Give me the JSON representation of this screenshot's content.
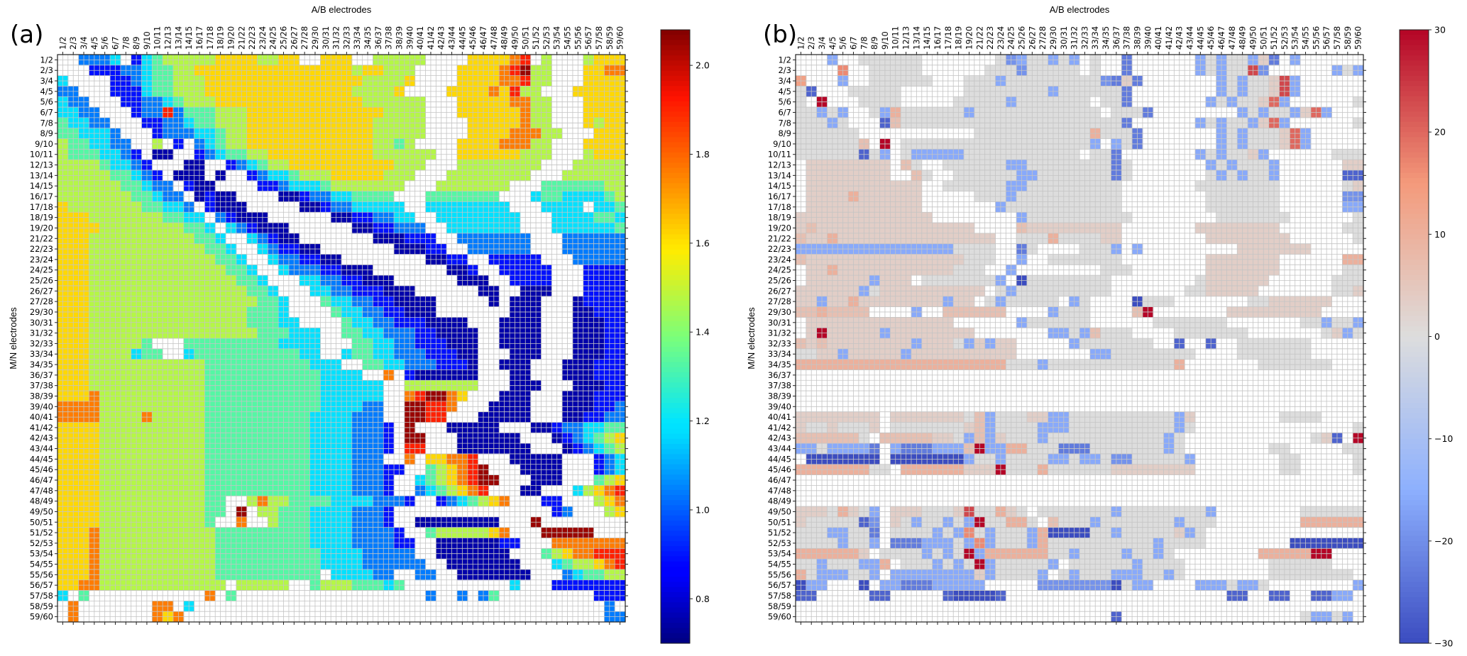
{
  "chart_data": [
    {
      "type": "heatmap",
      "panel_label": "(a)",
      "title": "",
      "xlabel": "A/B electrodes",
      "ylabel": "M/N electrodes",
      "x_tick_labels": [
        "1/2",
        "2/3",
        "3/4",
        "4/5",
        "5/6",
        "6/7",
        "7/8",
        "8/9",
        "9/10",
        "10/11",
        "12/13",
        "13/14",
        "14/15",
        "16/17",
        "17/18",
        "18/19",
        "19/20",
        "21/22",
        "22/23",
        "23/24",
        "24/25",
        "25/26",
        "26/27",
        "27/28",
        "29/30",
        "30/31",
        "31/32",
        "32/33",
        "33/34",
        "34/35",
        "36/37",
        "37/38",
        "38/39",
        "39/40",
        "40/41",
        "41/42",
        "42/43",
        "43/44",
        "44/45",
        "45/46",
        "46/47",
        "47/48",
        "48/49",
        "49/50",
        "50/51",
        "51/52",
        "52/53",
        "53/54",
        "54/55",
        "55/56",
        "56/57",
        "57/58",
        "58/59",
        "59/60"
      ],
      "y_tick_labels": [
        "1/2",
        "2/3",
        "3/4",
        "4/5",
        "5/6",
        "6/7",
        "7/8",
        "8/9",
        "9/10",
        "10/11",
        "12/13",
        "13/14",
        "14/15",
        "16/17",
        "17/18",
        "18/19",
        "19/20",
        "21/22",
        "22/23",
        "23/24",
        "24/25",
        "25/26",
        "26/27",
        "27/28",
        "29/30",
        "30/31",
        "31/32",
        "32/33",
        "33/34",
        "34/35",
        "36/37",
        "37/38",
        "38/39",
        "39/40",
        "40/41",
        "41/42",
        "42/43",
        "43/44",
        "44/45",
        "45/46",
        "46/47",
        "47/48",
        "48/49",
        "49/50",
        "50/51",
        "51/52",
        "52/53",
        "53/54",
        "54/55",
        "55/56",
        "56/57",
        "57/58",
        "58/59",
        "59/60"
      ],
      "colormap": "jet",
      "colorbar": {
        "range": [
          0.7,
          2.08
        ],
        "ticks": [
          "0.8",
          "1.0",
          "1.2",
          "1.4",
          "1.6",
          "1.8",
          "2.0"
        ],
        "tick_values": [
          0.8,
          1.0,
          1.2,
          1.4,
          1.6,
          1.8,
          2.0
        ]
      },
      "empty_columns": [
        "36/37",
        "37/38",
        "38/39",
        "39/40",
        "46/47",
        "47/48",
        "48/49"
      ],
      "grid": true,
      "value_description": "Apparent resistivity ratio matrix; low values (~0.75-1.0, dark blue) along the diagonal band and lower-right, high values (~1.5-1.7, yellow) in left columns, very high (~1.9-2.05, red) in columns 44/45, 57/58 and in blocks rows 37/38-48/49 x cols 40/41-45/46 and rows 45/46-55/56 x cols 49/50-55/56.",
      "values_coarse": {
        "encoding": "one character per cell, row-major 54x54; '.' = no data, digits 0-9 map linearly to 0.75..2.05",
        "rows": [
          "..2223.1345555566665566..666..55555....666678.5...56666666678..",
          "...1112234455666666666666666566555....666678955...66776666678..",
          "3....11234455566666666666666655556....666677855...66666666678..",
          "22...1113445556666666666666655556....666676855...66666666678..",
          "322...11223455566666666666666555555...666667755...66666666668..",
          "3322...1228244455566666666666665555...666666755...666666666678.",
          "43322...112234455566666666666655555....66666755...65666666678..",
          "443332...12223345566666666666655555....666677755...666666666789.",
          "5443322..5.1.234556666666666665545....666677755...666656666689.",
          "54443321.00..12344556666666666555555..666666555...56666666668.",
          "555543321...00..1234556666666666555...55555555...555555555678",
          "5555544321.000.0..1233455566666555...55555555...555555555689",
          "55555544322.100....11233345555555...5555555...44444455678",
          "555555544322.0100....00122334444...4444444...3443333457",
          "6555555544332.1000.....0012233333..33333333...3333.33478",
          "66655555554433.21000......00112233..33333333...3333443578",
          "666655555555443.321000......0011222..3333333...333333467",
          "6665555555555443..32100.......000111..2222222...2222223567",
          "66655555555555443..321100.......00011..222222...222222346",
          "666555555555555443..3221100........0011..11111...2222223456",
          "6665555555555555443..322211000.......001..11111...1111112345",
          "66655555555555555443...332211000......000..1111...1111112345",
          "666555555555555555443...3322111000......00..000...1111111234",
          "6665555555555555555443...43322110000.....0.000...0111111234",
          "6665555555555555554443....4332211000.......000...0011111234",
          "66655555555555555544433....433221110000...0000...0001111123",
          "6665555555555555555444333..4433222110000..0000...0001111123",
          "666555554...4444444443333...443322111000..0000...0001111123",
          "6665555344..3444444444433..3443322211100...000...0001111123",
          "666555555555554444444444333..44332221110..000...0001111122",
          "66655555555555444444444443333..7.1000000...00...0001111122",
          "6665555555555544444444444333333..5555555...000...0001111122",
          "6667555555555544444444444333333..789976...000...0001112222",
          "7777555555555544444444444333322..99887...0000...0001122233",
          "7777555575555544444444443333222..9988...00000...0011223344",
          "66665555555555444444444433332221.9...00000...0012233445566",
          "66665555555555444444444433332221.99...000000...01234567789",
          "66665555555555444444444433332221.88...0000000...012345678999",
          "6666555555555544444444443333222..7.66778...00000...1234567899",
          "666655555555554444444444333322211..456789...0000...1234567899",
          "66665555555555444444444433332221..34567899...000...4567899",
          "66665555555555444444444433332221..2345678...00...35678",
          "6666555555555544..5755444433332221..1234567...11...567",
          "6666555555555544.9.5544433332221...............12...56",
          "666655555555554..7..544433332221..00000000...9........",
          "666755555555555444444444333322221..45555567...99999....",
          "6667555555555554444444443333222211..00000011...7777777...",
          "6667555555555554444444444333322222..0000000...456778889..",
          "66675555555555544444444443333222222..0000000...34556789..",
          "6667555555555554444444444.333322..22..0000000...23445559..",
          "6677555555555555.55555..455544434..........3...1111111111..",
          "3.4...........7.4..................2..2.24.........1111111...",
          ".7.......77.3.......................................2.2..",
          ".7.......767........................................223..."
        ]
      }
    },
    {
      "type": "heatmap",
      "panel_label": "(b)",
      "title": "",
      "xlabel": "A/B electrodes",
      "ylabel": "M/N electrodes",
      "x_tick_labels": [
        "1/2",
        "2/3",
        "3/4",
        "4/5",
        "5/6",
        "6/7",
        "7/8",
        "8/9",
        "9/10",
        "10/11",
        "12/13",
        "13/14",
        "14/15",
        "16/17",
        "17/18",
        "18/19",
        "19/20",
        "21/22",
        "22/23",
        "23/24",
        "24/25",
        "25/26",
        "26/27",
        "27/28",
        "29/30",
        "30/31",
        "31/32",
        "32/33",
        "33/34",
        "34/35",
        "36/37",
        "37/38",
        "38/39",
        "39/40",
        "40/41",
        "41/42",
        "42/43",
        "43/44",
        "44/45",
        "45/46",
        "46/47",
        "47/48",
        "48/49",
        "49/50",
        "50/51",
        "51/52",
        "52/53",
        "53/54",
        "54/55",
        "55/56",
        "56/57",
        "57/58",
        "58/59",
        "59/60"
      ],
      "y_tick_labels": [
        "1/2",
        "2/3",
        "3/4",
        "4/5",
        "5/6",
        "6/7",
        "7/8",
        "8/9",
        "9/10",
        "10/11",
        "12/13",
        "13/14",
        "14/15",
        "16/17",
        "17/18",
        "18/19",
        "19/20",
        "21/22",
        "22/23",
        "23/24",
        "24/25",
        "25/26",
        "26/27",
        "27/28",
        "29/30",
        "30/31",
        "31/32",
        "32/33",
        "33/34",
        "34/35",
        "36/37",
        "37/38",
        "38/39",
        "39/40",
        "40/41",
        "41/42",
        "42/43",
        "43/44",
        "44/45",
        "45/46",
        "46/47",
        "47/48",
        "48/49",
        "49/50",
        "50/51",
        "51/52",
        "52/53",
        "53/54",
        "54/55",
        "55/56",
        "56/57",
        "57/58",
        "58/59",
        "59/60"
      ],
      "colormap": "coolwarm",
      "colorbar": {
        "range": [
          -30,
          30
        ],
        "ticks": [
          "30",
          "20",
          "10",
          "0",
          "−10",
          "−20",
          "−30"
        ],
        "tick_values": [
          30,
          20,
          10,
          0,
          -10,
          -20,
          -30
        ]
      },
      "empty_rows": [
        "36/37",
        "37/38",
        "38/39",
        "39/40",
        "46/47",
        "47/48",
        "48/49",
        "58/59"
      ],
      "grid": true,
      "value_description": "Percent difference matrix; mostly near 0 (grey), mild positive (~+5..+10) in many rows, strong positive (~+30) in column 44/45 and column 57/58, strong negative (~-25..-30) in rows 44/45, 57/58 and row 13/14 cols 49/50-55/56.",
      "values_coarse": {
        "encoding": "one character per cell, row-major 54x54; '.' = no data, 'a'..'i' map -30..-2 (a=-30), '0' = 0, '1'..'9' map +3..+30",
        "rows": [
          "...e..000000.......0de00e0e.0..c......e0e00e1c.e.......e0000000000ee0.69..",
          "....5..00000......000d00000.0..c......e0e007d......e0e000000001..",
          "4...e..000000...000e000000000dc1c.......e0e0017e......e0000001000..",
          "0b...00000......00000000e000000c........e0e0017e......0e00000000.4.",
          "0.9...0000.....00000e0000000.00c.......e0e0016e......00001000...",
          "00e0e..0e3000000e000000000000.000c........e0e00e16e......10e00000",
          "000e0...b2000000000000000000000c......e0e00e16e......0000000.",
          "000000...........000000000003000c.......e0e00016e......00000000..",
          "0000002.9.000000000000000000e.e0c.......e0e00016e......10000000..",
          "000000b0e.0eeeee00000000000.00c.......e0e001e......000010e000",
          ".11111111.20..000000ee00000000c0.......e0e000e......110000d00..",
          ".11111111..20..000000ee0000000c0.......0e0e00e......bbcccbbc0...",
          ".11111111111..000000ee000000000.......00000000......01111111...",
          ".11113111111.....000e0000000000........0000000......ddeee0e0..",
          ".11111111111.......e00000000000........0000000......ee0ee0e2..",
          "1111111111111........e0000000000........0000000......00ccc0e2..",
          "12111111111111111....2111111111.......11111111......00000000...",
          "2113111111111111111..0003000011........11111111......00000000...",
          "eeeeeeeeeeeeeee0000..c0....000e.e.........1111111......ee00002...",
          "2111111111111111000..e..0000000........1111111......33333333....",
          ".11311111111111000..e........000.......1111111......000000003...",
          ".111111e111.0000000e.a00000000........0111111......0000e01e9..",
          "111111e01111111111.0e000000000.......0011111.......001e00e0..",
          "11e11311111111e11.0e00000.e0....a000.......00111111......0e000e09..",
          "2232222....e..222222....e000....29.......111111111......000001.",
          ".11111111111111......e000000......0000000.......00e00e0e..",
          ".1911111e11111111.......ee0e2000....0000000.......01e0e00099.9",
          "21211111111e1110e1e11.....e0000000..b..b..0000000.......001e00009",
          "0011e11111e1111111111.......ee00000000....0000000.......001100e09",
          "33333333333333333333000e0000000000003.......0000000.......0222223.",
          "......................................................",
          "......................................................",
          "......................................................",
          "......................................................",
          "11111111.111111102e00011ee0000000000e1........0000......10b.9b9d00094",
          "10010001.000000012e0000eee0000000000e0...............00b.9b9d0009e",
          "2222220.22222110e2e1000e00000000000e0............01b.9b9d00109e",
          "ee0eeeec.eccceee29ee33000ccc0000000e0........00.....00c.9b9d00109e",
          ".aaaaaaa.aaaaaaae00e0000ee0ee0dd00000e........00.....00c.9b9d001d0e",
          "333333300.3333331119000300000011111111........00.....00e.9b9d0033e",
          "......................................................",
          "......................................................",
          "......................................................",
          "1110310e.1110001700310.0000000e00000000e........0000000......0e000000.",
          "100000bd.10e00e0e900330.2000e0000000e000........3333333.......0b000000.",
          "000ee00c.0000e0e50e000e3aaaa00e000001e0........................0b0000.",
          "0000e00e.ccceee0e5e000e30000000000e0000........aaaaaaa......0.......0.",
          "3333331.0000e0e09e33333300e0000e00e0........3333399......1.............",
          "00e000ee3.000e0e09e00000e.000000e0000........000000......1....9.0......",
          "30eee00e.eeeeeeee1e0000e.0e000eee00e0........00000000......00e0.....b..",
          "aee...a.eeccceeeee.....ddddddda0ee....eee0ee0........eeeeeeee......eeeee9..",
          "bb.....bb.....baaaab.....................bb..bb..bbee........bbbbaaeee........",
          "......................................................",
          "..............................b.................0ee0e....ee02e..."
        ]
      }
    }
  ]
}
